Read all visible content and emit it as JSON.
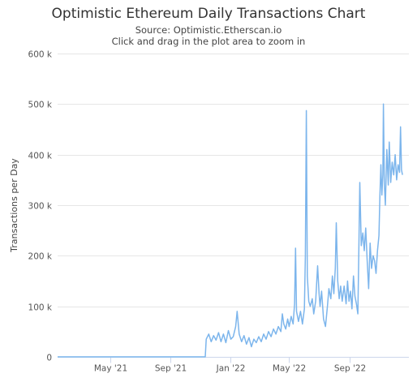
{
  "chart_data": {
    "type": "line",
    "title": "Optimistic Ethereum Daily Transactions Chart",
    "subtitle_lines": [
      "Source: Optimistic.Etherscan.io",
      "Click and drag in the plot area to zoom in"
    ],
    "ylabel": "Transactions per Day",
    "xlabel": "",
    "ylim": [
      0,
      600000
    ],
    "xlim": [
      "2021-01-14",
      "2022-12-31"
    ],
    "y_ticks": [
      {
        "value": 0,
        "label": "0"
      },
      {
        "value": 100000,
        "label": "100 k"
      },
      {
        "value": 200000,
        "label": "200 k"
      },
      {
        "value": 300000,
        "label": "300 k"
      },
      {
        "value": 400000,
        "label": "400 k"
      },
      {
        "value": 500000,
        "label": "500 k"
      },
      {
        "value": 600000,
        "label": "600 k"
      }
    ],
    "x_ticks": [
      {
        "value": "2021-05-01",
        "label": "May '21"
      },
      {
        "value": "2021-09-01",
        "label": "Sep '21"
      },
      {
        "value": "2022-01-01",
        "label": "Jan '22"
      },
      {
        "value": "2022-05-01",
        "label": "May '22"
      },
      {
        "value": "2022-09-01",
        "label": "Sep '22"
      }
    ],
    "grid": true,
    "legend": "none",
    "series": [
      {
        "color": "#7cb5ec",
        "points": [
          [
            "2021-01-14",
            0
          ],
          [
            "2021-11-11",
            0
          ],
          [
            "2021-11-13",
            35000
          ],
          [
            "2021-11-18",
            45000
          ],
          [
            "2021-11-23",
            30000
          ],
          [
            "2021-11-28",
            42000
          ],
          [
            "2021-12-03",
            33000
          ],
          [
            "2021-12-08",
            48000
          ],
          [
            "2021-12-13",
            30000
          ],
          [
            "2021-12-18",
            45000
          ],
          [
            "2021-12-23",
            28000
          ],
          [
            "2021-12-28",
            52000
          ],
          [
            "2022-01-02",
            35000
          ],
          [
            "2022-01-07",
            40000
          ],
          [
            "2022-01-12",
            60000
          ],
          [
            "2022-01-15",
            90000
          ],
          [
            "2022-01-19",
            45000
          ],
          [
            "2022-01-24",
            30000
          ],
          [
            "2022-01-29",
            42000
          ],
          [
            "2022-02-03",
            25000
          ],
          [
            "2022-02-08",
            38000
          ],
          [
            "2022-02-13",
            20000
          ],
          [
            "2022-02-18",
            35000
          ],
          [
            "2022-02-23",
            28000
          ],
          [
            "2022-02-28",
            40000
          ],
          [
            "2022-03-05",
            30000
          ],
          [
            "2022-03-10",
            45000
          ],
          [
            "2022-03-15",
            35000
          ],
          [
            "2022-03-20",
            50000
          ],
          [
            "2022-03-25",
            40000
          ],
          [
            "2022-03-30",
            55000
          ],
          [
            "2022-04-04",
            45000
          ],
          [
            "2022-04-09",
            60000
          ],
          [
            "2022-04-14",
            50000
          ],
          [
            "2022-04-17",
            85000
          ],
          [
            "2022-04-20",
            65000
          ],
          [
            "2022-04-24",
            55000
          ],
          [
            "2022-04-28",
            75000
          ],
          [
            "2022-05-01",
            60000
          ],
          [
            "2022-05-05",
            80000
          ],
          [
            "2022-05-09",
            65000
          ],
          [
            "2022-05-12",
            105000
          ],
          [
            "2022-05-14",
            215000
          ],
          [
            "2022-05-16",
            90000
          ],
          [
            "2022-05-20",
            70000
          ],
          [
            "2022-05-24",
            90000
          ],
          [
            "2022-05-28",
            65000
          ],
          [
            "2022-06-01",
            95000
          ],
          [
            "2022-06-03",
            200000
          ],
          [
            "2022-06-05",
            487000
          ],
          [
            "2022-06-07",
            160000
          ],
          [
            "2022-06-10",
            110000
          ],
          [
            "2022-06-13",
            100000
          ],
          [
            "2022-06-17",
            115000
          ],
          [
            "2022-06-20",
            85000
          ],
          [
            "2022-06-24",
            110000
          ],
          [
            "2022-06-28",
            180000
          ],
          [
            "2022-07-01",
            125000
          ],
          [
            "2022-07-03",
            100000
          ],
          [
            "2022-07-06",
            130000
          ],
          [
            "2022-07-10",
            75000
          ],
          [
            "2022-07-14",
            60000
          ],
          [
            "2022-07-18",
            100000
          ],
          [
            "2022-07-21",
            135000
          ],
          [
            "2022-07-25",
            115000
          ],
          [
            "2022-07-28",
            160000
          ],
          [
            "2022-07-31",
            125000
          ],
          [
            "2022-08-03",
            175000
          ],
          [
            "2022-08-05",
            265000
          ],
          [
            "2022-08-08",
            150000
          ],
          [
            "2022-08-11",
            115000
          ],
          [
            "2022-08-14",
            140000
          ],
          [
            "2022-08-17",
            110000
          ],
          [
            "2022-08-21",
            140000
          ],
          [
            "2022-08-25",
            105000
          ],
          [
            "2022-08-28",
            150000
          ],
          [
            "2022-08-31",
            110000
          ],
          [
            "2022-09-03",
            130000
          ],
          [
            "2022-09-06",
            95000
          ],
          [
            "2022-09-09",
            160000
          ],
          [
            "2022-09-12",
            120000
          ],
          [
            "2022-09-15",
            105000
          ],
          [
            "2022-09-18",
            85000
          ],
          [
            "2022-09-20",
            210000
          ],
          [
            "2022-09-22",
            345000
          ],
          [
            "2022-09-25",
            220000
          ],
          [
            "2022-09-28",
            245000
          ],
          [
            "2022-10-01",
            210000
          ],
          [
            "2022-10-04",
            255000
          ],
          [
            "2022-10-07",
            190000
          ],
          [
            "2022-10-10",
            135000
          ],
          [
            "2022-10-13",
            225000
          ],
          [
            "2022-10-16",
            175000
          ],
          [
            "2022-10-19",
            200000
          ],
          [
            "2022-10-22",
            190000
          ],
          [
            "2022-10-25",
            165000
          ],
          [
            "2022-10-28",
            210000
          ],
          [
            "2022-10-31",
            240000
          ],
          [
            "2022-11-02",
            320000
          ],
          [
            "2022-11-04",
            380000
          ],
          [
            "2022-11-06",
            320000
          ],
          [
            "2022-11-08",
            360000
          ],
          [
            "2022-11-09",
            500000
          ],
          [
            "2022-11-11",
            340000
          ],
          [
            "2022-11-13",
            300000
          ],
          [
            "2022-11-16",
            410000
          ],
          [
            "2022-11-19",
            340000
          ],
          [
            "2022-11-21",
            425000
          ],
          [
            "2022-11-24",
            345000
          ],
          [
            "2022-11-27",
            385000
          ],
          [
            "2022-11-30",
            360000
          ],
          [
            "2022-12-03",
            400000
          ],
          [
            "2022-12-06",
            350000
          ],
          [
            "2022-12-09",
            380000
          ],
          [
            "2022-12-12",
            365000
          ],
          [
            "2022-12-14",
            455000
          ],
          [
            "2022-12-16",
            370000
          ],
          [
            "2022-12-18",
            360000
          ]
        ]
      }
    ]
  }
}
